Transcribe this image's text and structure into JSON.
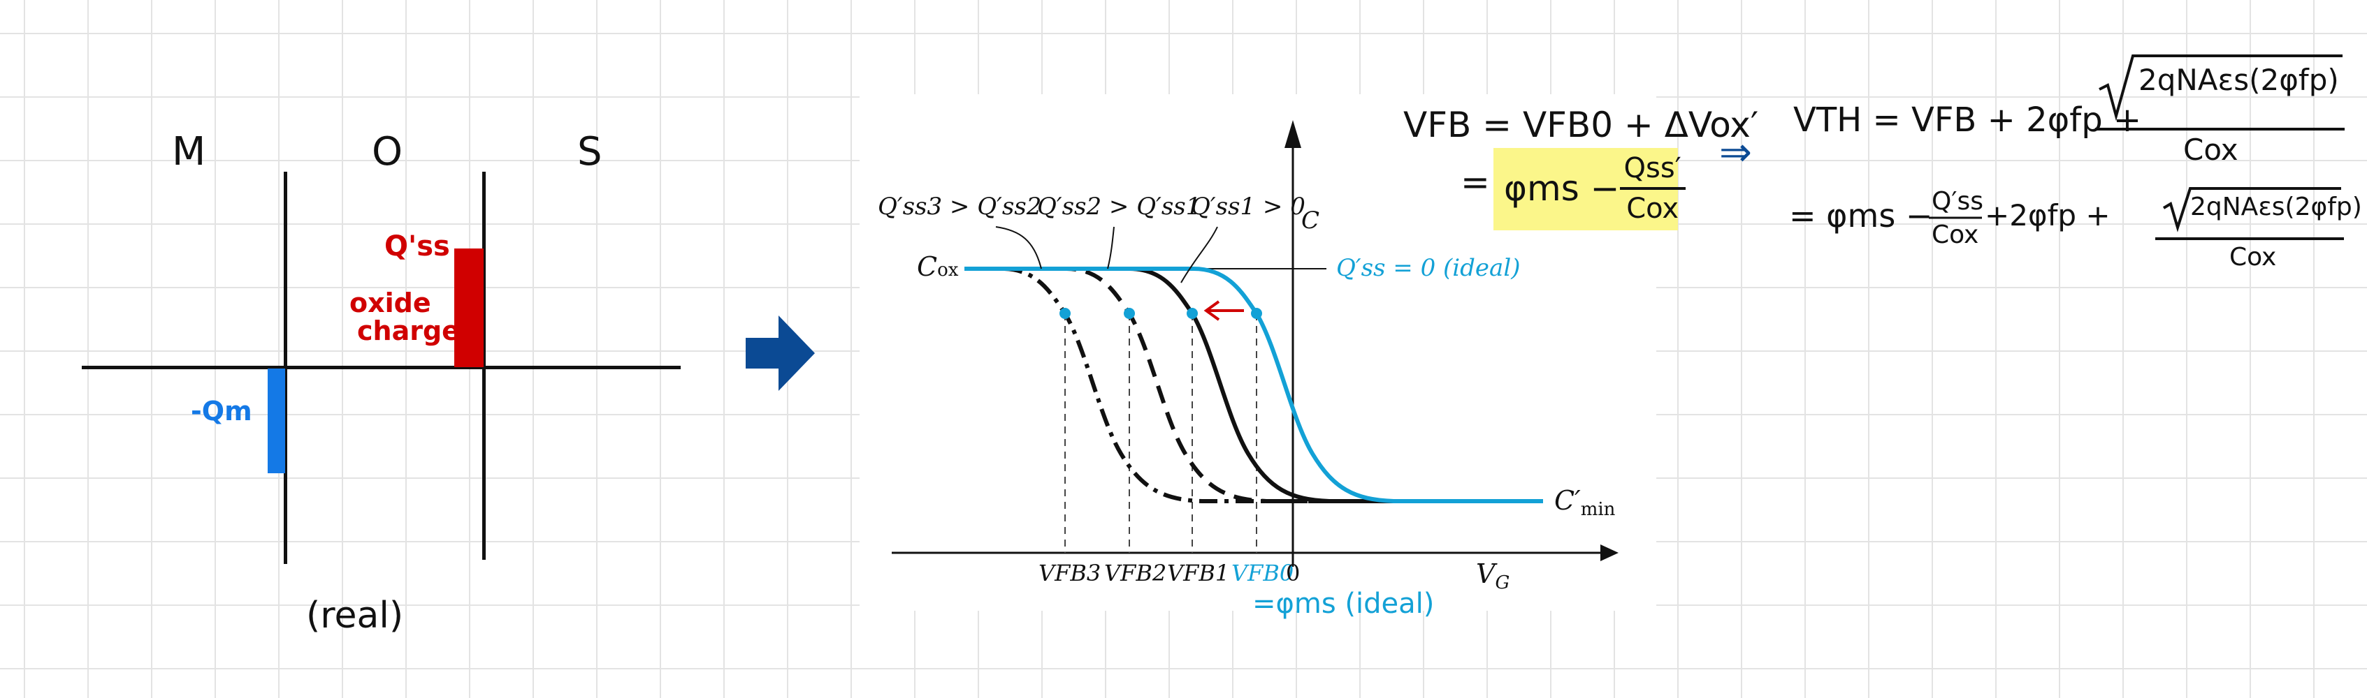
{
  "mos": {
    "letters": [
      "M",
      "O",
      "S"
    ],
    "caption": "(real)",
    "qss_label": "Q'ss",
    "oxide_label_1": "oxide",
    "oxide_label_2": "charge",
    "qm_label": "-Qm"
  },
  "colors": {
    "ink": "#111111",
    "red": "#d00000",
    "blue": "#1479e6",
    "cyan": "#13a1d6",
    "highlight": "#fbf68a",
    "arrow_navy": "#0b4a94"
  },
  "graph": {
    "y_axis_label": "C",
    "cox_label": "C",
    "cox_sub": "ox",
    "cmin_label": "C′",
    "cmin_sub": "min",
    "x_axis_label": "V",
    "x_axis_sub": "G",
    "legend_1": "Q′ss3 > Q′ss2",
    "legend_2": "Q′ss2 > Q′ss1",
    "legend_3": "Q′ss1 > 0",
    "ideal_label": "Q′ss = 0 (ideal)",
    "tick_labels": [
      "VFB3",
      "VFB2",
      "VFB1",
      "VFB0",
      "0"
    ],
    "ideal_note": "=φms (ideal)"
  },
  "equations": {
    "vfb_lhs": "VFB = VFB0 + ΔVox′",
    "vfb_line2_eq": "=",
    "phi_ms": "φms −",
    "qss_num": "Qss′",
    "cox_den": "Cox",
    "implies": "⇒",
    "vth_lhs": "VTH = VFB + 2φfp +",
    "vth_sqrt": "2qNAεs(2φfp)",
    "vth_den": "Cox",
    "line2_a": "= φms −",
    "line2_qss": "Q′ss",
    "line2_cox": "Cox",
    "line2_b": "+2φfp +",
    "line2_sqrt": "2qNAεs(2φfp)",
    "line2_den": "Cox"
  }
}
